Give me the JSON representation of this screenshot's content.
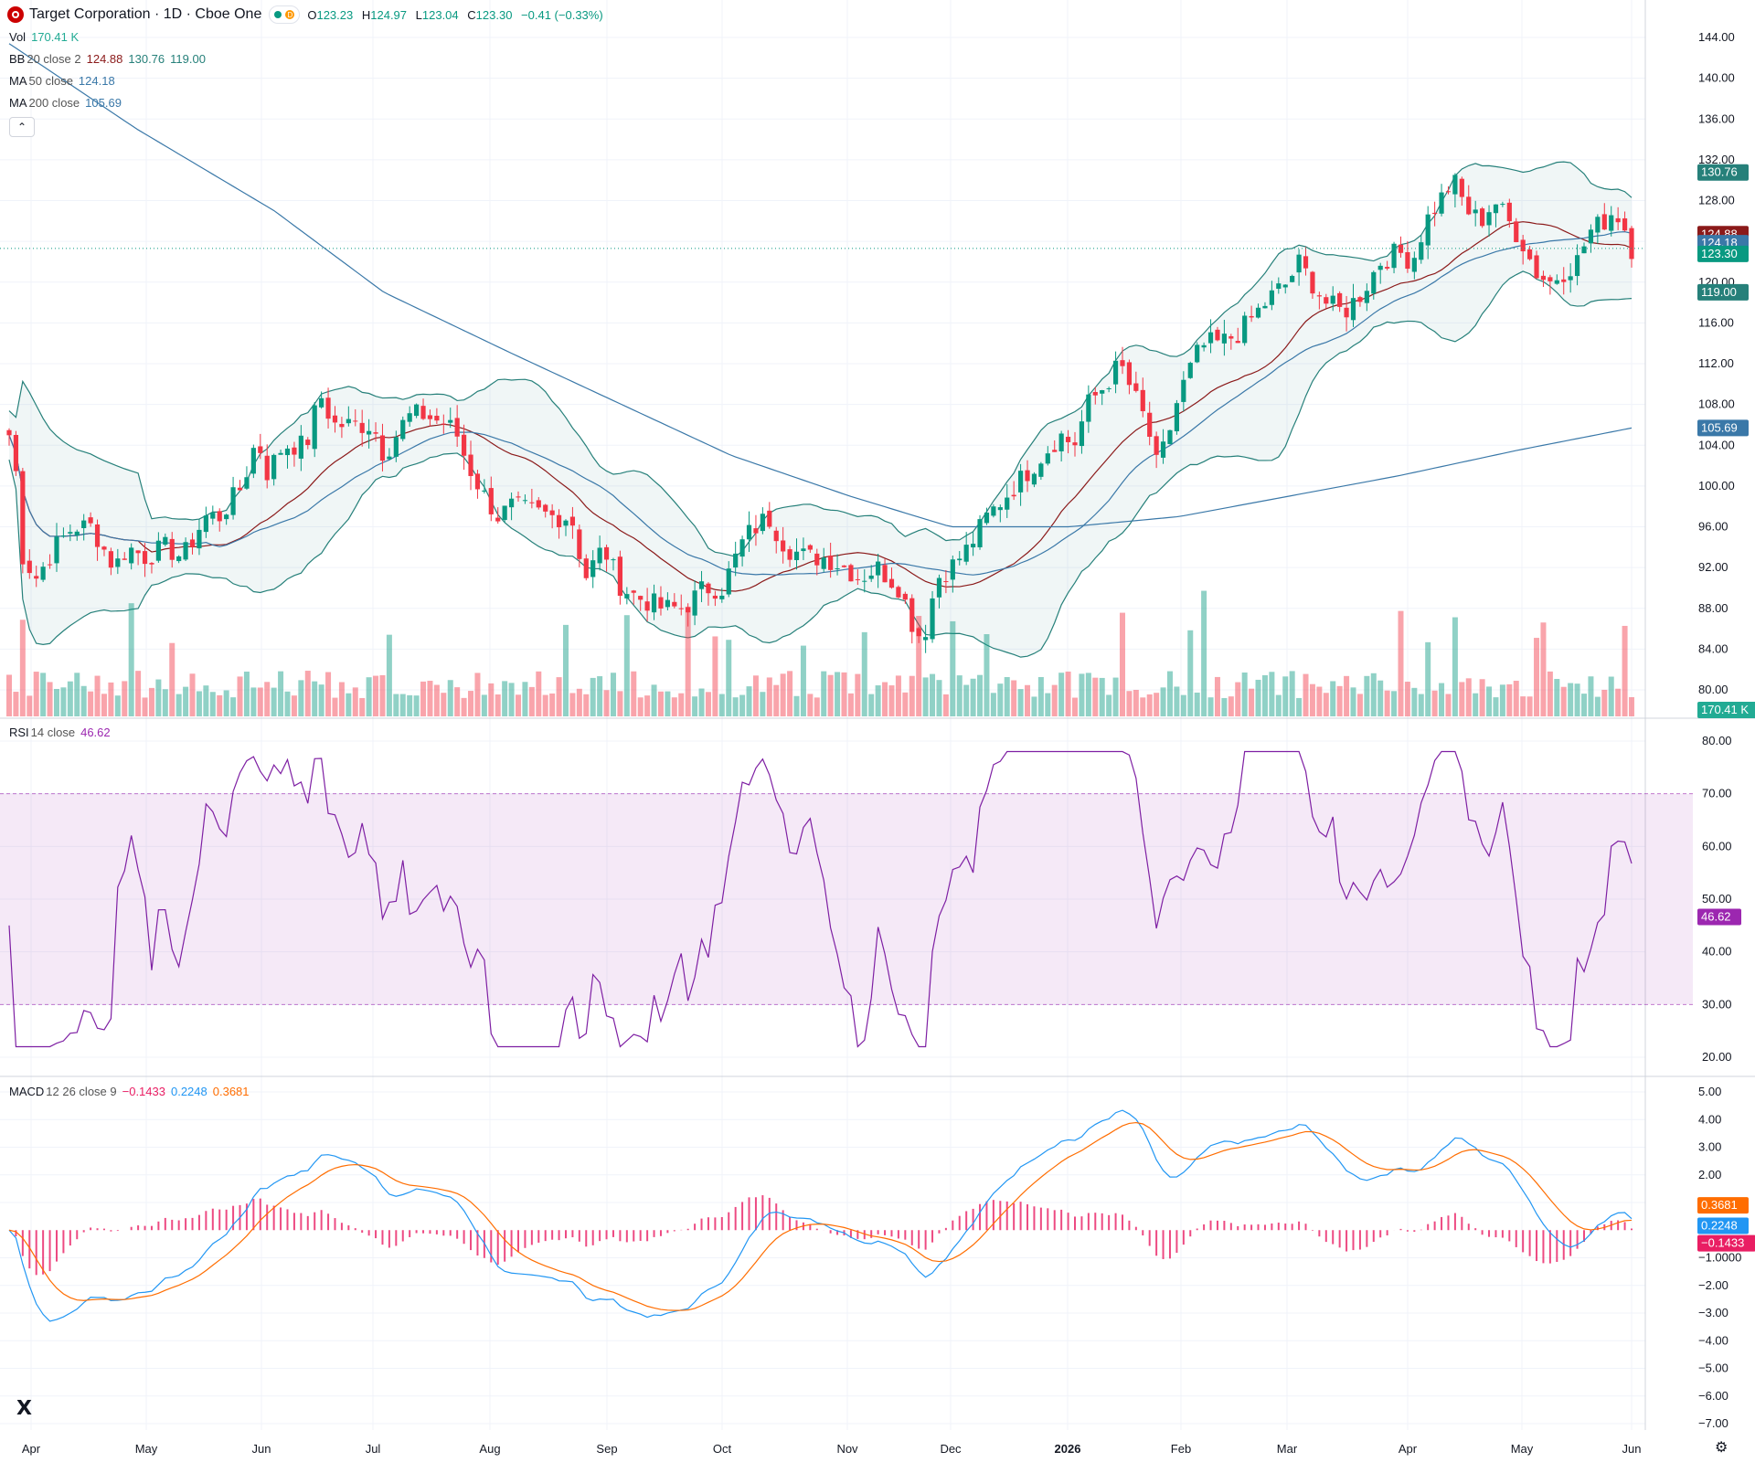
{
  "header": {
    "symbol_title": "Target Corporation · 1D · Cboe One",
    "status_letter": "D",
    "ohlc": {
      "o_label": "O",
      "o": "123.23",
      "h_label": "H",
      "h": "124.97",
      "l_label": "L",
      "l": "123.04",
      "c_label": "C",
      "c": "123.30",
      "change": "−0.41 (−0.33%)"
    }
  },
  "legends": {
    "vol": {
      "name": "Vol",
      "value": "170.41 K"
    },
    "bb": {
      "name": "BB",
      "params": "20 close 2",
      "basis": "124.88",
      "upper": "130.76",
      "lower": "119.00"
    },
    "ma50": {
      "name": "MA",
      "params": "50 close",
      "value": "124.18"
    },
    "ma200": {
      "name": "MA",
      "params": "200 close",
      "value": "105.69"
    },
    "rsi": {
      "name": "RSI",
      "params": "14 close",
      "value": "46.62"
    },
    "macd": {
      "name": "MACD",
      "params": "12 26 close 9",
      "hist": "−0.1433",
      "macd": "0.2248",
      "signal": "0.3681"
    }
  },
  "price_axis": {
    "ticks": [
      "144.00",
      "140.00",
      "136.00",
      "132.00",
      "128.00",
      "124.00",
      "120.00",
      "116.00",
      "112.00",
      "108.00",
      "104.00",
      "100.00",
      "96.00",
      "92.00",
      "88.00",
      "84.00",
      "80.00"
    ],
    "badges": [
      {
        "text": "130.76",
        "color": "#26807a"
      },
      {
        "text": "124.88",
        "color": "#8b1a1a"
      },
      {
        "text": "124.18",
        "color": "#3a78a8"
      },
      {
        "text": "123.30",
        "color": "#089981"
      },
      {
        "text": "119.00",
        "color": "#26807a"
      },
      {
        "text": "105.69",
        "color": "#3a78a8"
      },
      {
        "text": "170.41 K",
        "color": "#22ab94"
      }
    ]
  },
  "rsi_axis": {
    "ticks": [
      "80.00",
      "70.00",
      "60.00",
      "50.00",
      "40.00",
      "30.00",
      "20.00"
    ],
    "badge": {
      "text": "46.62",
      "color": "#9c27b0"
    }
  },
  "macd_axis": {
    "ticks": [
      "5.00",
      "4.00",
      "3.00",
      "2.00",
      "1.0000",
      "−1.0000",
      "−2.00",
      "−3.00",
      "−4.00",
      "−5.00",
      "−6.00",
      "−7.00"
    ],
    "badges": [
      {
        "text": "0.3681",
        "color": "#ff6d00"
      },
      {
        "text": "0.2248",
        "color": "#2196f3"
      },
      {
        "text": "−0.1433",
        "color": "#e91e63"
      }
    ]
  },
  "time_axis": {
    "labels": [
      "Apr",
      "May",
      "Jun",
      "Jul",
      "Aug",
      "Sep",
      "Oct",
      "Nov",
      "Dec",
      "2026",
      "Feb",
      "Mar",
      "Apr",
      "May",
      "Jun"
    ]
  },
  "icons": {
    "collapse": "chevron-up-icon",
    "logo": "tradingview-logo",
    "settings": "gear-icon"
  },
  "colors": {
    "up": "#089981",
    "down": "#f23645",
    "bb": "#26807a",
    "basis": "#8b1a1a",
    "ma": "#3a78a8",
    "rsi": "#7e1fa3",
    "macd": "#2196f3",
    "signal": "#ff6d00"
  },
  "chart_data": {
    "type": "line",
    "series": [
      {
        "name": "Close",
        "x": [
          "Apr",
          "May",
          "Jun",
          "Jul",
          "Aug",
          "Sep",
          "Oct",
          "Nov",
          "Dec",
          "2026",
          "Feb",
          "Mar",
          "Apr",
          "May",
          "Jun"
        ],
        "values": [
          92,
          96,
          94,
          104,
          101,
          95,
          89,
          92,
          90,
          103,
          112,
          117,
          118,
          124,
          123.3
        ]
      },
      {
        "name": "MA 200 close",
        "x": [
          "Apr",
          "May",
          "Jun",
          "Jul",
          "Aug",
          "Sep",
          "Oct",
          "Nov",
          "Dec",
          "2026",
          "Feb",
          "Mar",
          "Apr",
          "May",
          "Jun"
        ],
        "values": [
          140,
          132,
          127,
          122,
          117,
          111,
          105,
          99,
          97,
          96,
          97,
          99,
          101,
          103,
          105.69
        ]
      }
    ],
    "ylim": [
      78,
      146
    ]
  }
}
